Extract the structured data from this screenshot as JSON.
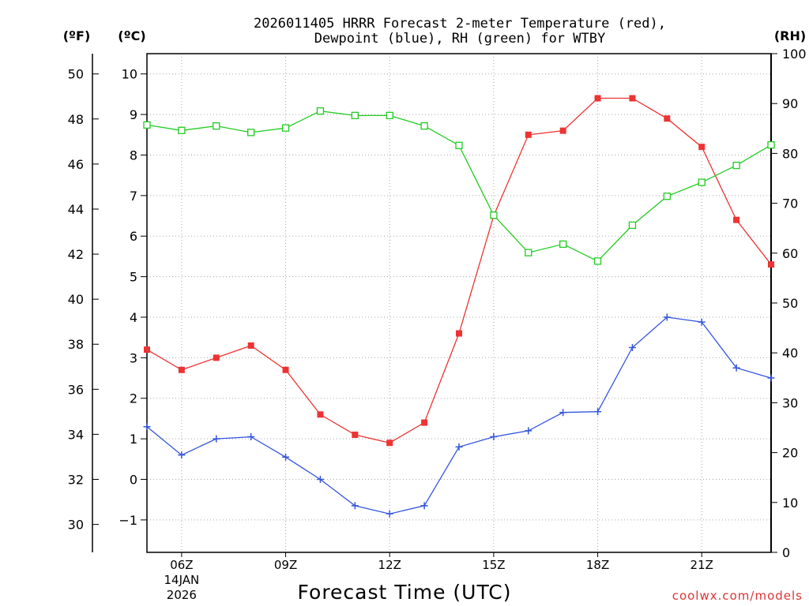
{
  "chart_data": {
    "type": "line",
    "title_line1": "2026011405 HRRR Forecast 2-meter Temperature (red),",
    "title_line2": "Dewpoint (blue), RH (green) for WTBY",
    "xlabel": "Forecast Time (UTC)",
    "credit": "coolwx.com/models",
    "x_hours": [
      5,
      6,
      7,
      8,
      9,
      10,
      11,
      12,
      13,
      14,
      15,
      16,
      17,
      18,
      19,
      20,
      21,
      22,
      23
    ],
    "xlim": [
      5,
      23
    ],
    "x_ticks": [
      {
        "hour": 6,
        "label": "06Z",
        "date": "14JAN",
        "year": "2026"
      },
      {
        "hour": 9,
        "label": "09Z"
      },
      {
        "hour": 12,
        "label": "12Z"
      },
      {
        "hour": 15,
        "label": "15Z"
      },
      {
        "hour": 18,
        "label": "18Z"
      },
      {
        "hour": 21,
        "label": "21Z"
      }
    ],
    "celsius_axis": {
      "label": "(ºC)",
      "range": [
        -1.8,
        10.5
      ],
      "ticks": [
        -1,
        0,
        1,
        2,
        3,
        4,
        5,
        6,
        7,
        8,
        9,
        10
      ],
      "tick_labels": [
        "−1",
        "0",
        "1",
        "2",
        "3",
        "4",
        "5",
        "6",
        "7",
        "8",
        "9",
        "10"
      ]
    },
    "fahrenheit_axis": {
      "label": "(ºF)",
      "ticks": [
        30,
        32,
        34,
        36,
        38,
        40,
        42,
        44,
        46,
        48,
        50
      ]
    },
    "rh_axis": {
      "label": "(RH)",
      "range": [
        0,
        100
      ],
      "ticks": [
        0,
        10,
        20,
        30,
        40,
        50,
        60,
        70,
        80,
        90,
        100
      ]
    },
    "series": [
      {
        "name": "Temperature",
        "unit": "C",
        "color": "#ee3333",
        "marker": "filled-square",
        "values": [
          3.2,
          2.7,
          3.0,
          3.3,
          2.7,
          1.6,
          1.1,
          0.9,
          1.4,
          3.6,
          6.5,
          8.5,
          8.6,
          9.4,
          9.4,
          8.9,
          8.2,
          6.4,
          5.3
        ]
      },
      {
        "name": "Dewpoint",
        "unit": "C",
        "color": "#3355dd",
        "marker": "plus",
        "values": [
          1.3,
          0.6,
          1.0,
          1.05,
          0.55,
          0.0,
          -0.65,
          -0.85,
          -0.65,
          0.8,
          1.05,
          1.2,
          1.65,
          1.67,
          3.25,
          4.0,
          3.88,
          2.75,
          2.5
        ]
      },
      {
        "name": "RH",
        "unit": "%",
        "color": "#22cc22",
        "marker": "open-square",
        "values": [
          85.7,
          84.6,
          85.5,
          84.2,
          85.1,
          88.5,
          87.6,
          87.6,
          85.5,
          81.6,
          67.6,
          60.1,
          61.8,
          58.4,
          65.6,
          71.4,
          74.2,
          77.6,
          81.7
        ]
      }
    ]
  }
}
